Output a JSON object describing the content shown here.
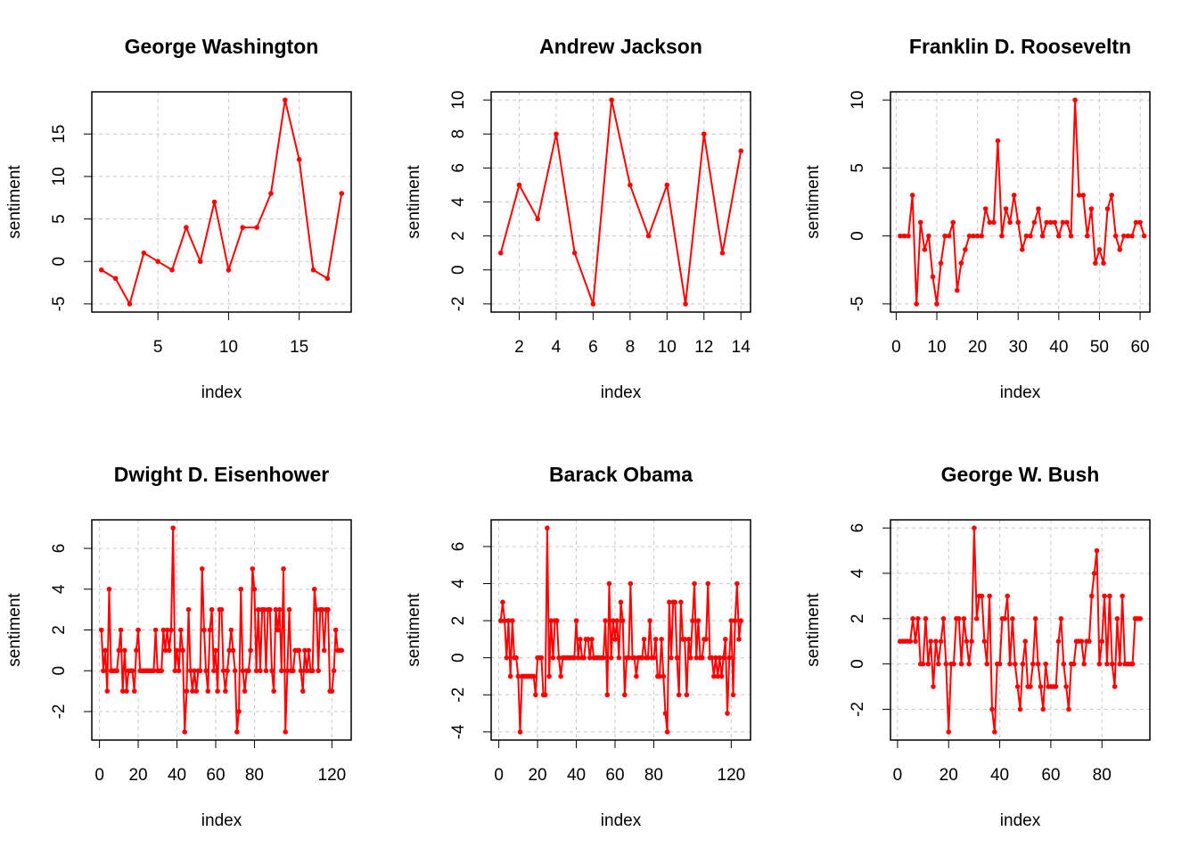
{
  "chart_data": [
    {
      "type": "line",
      "title": "George Washington",
      "xlabel": "index",
      "ylabel": "sentiment",
      "color": "#ff0000",
      "grid": true,
      "x": [
        1,
        2,
        3,
        4,
        5,
        6,
        7,
        8,
        9,
        10,
        11,
        12,
        13,
        14,
        15,
        16,
        17,
        18
      ],
      "values": [
        -1,
        -2,
        -5,
        1,
        0,
        -1,
        4,
        0,
        7,
        -1,
        4,
        4,
        8,
        19,
        12,
        -1,
        -2,
        8
      ],
      "xlim": [
        0.32,
        18.68
      ],
      "ylim": [
        -5.96,
        19.96
      ],
      "xticks": [
        5,
        10,
        15
      ],
      "yticks": [
        -5,
        0,
        5,
        10,
        15
      ]
    },
    {
      "type": "line",
      "title": "Andrew Jackson",
      "xlabel": "index",
      "ylabel": "sentiment",
      "color": "#ff0000",
      "grid": true,
      "x": [
        1,
        2,
        3,
        4,
        5,
        6,
        7,
        8,
        9,
        10,
        11,
        12,
        13,
        14
      ],
      "values": [
        1,
        5,
        3,
        8,
        1,
        -2,
        10,
        5,
        2,
        5,
        -2,
        8,
        1,
        7
      ],
      "xlim": [
        0.48,
        14.52
      ],
      "ylim": [
        -2.48,
        10.48
      ],
      "xticks": [
        2,
        4,
        6,
        8,
        10,
        12,
        14
      ],
      "yticks": [
        -2,
        0,
        2,
        4,
        6,
        8,
        10
      ]
    },
    {
      "type": "line",
      "title": "Franklin D. Rooseveltn",
      "xlabel": "index",
      "ylabel": "sentiment",
      "color": "#ff0000",
      "grid": true,
      "x": [
        1,
        2,
        3,
        4,
        5,
        6,
        7,
        8,
        9,
        10,
        11,
        12,
        13,
        14,
        15,
        16,
        17,
        18,
        19,
        20,
        21,
        22,
        23,
        24,
        25,
        26,
        27,
        28,
        29,
        30,
        31,
        32,
        33,
        34,
        35,
        36,
        37,
        38,
        39,
        40,
        41,
        42,
        43,
        44,
        45,
        46,
        47,
        48,
        49,
        50,
        51,
        52,
        53,
        54,
        55,
        56,
        57,
        58,
        59,
        60,
        61
      ],
      "values": [
        0,
        0,
        0,
        3,
        -5,
        1,
        -1,
        0,
        -3,
        -5,
        -2,
        0,
        0,
        1,
        -4,
        -2,
        -1,
        0,
        0,
        0,
        0,
        2,
        1,
        1,
        7,
        0,
        2,
        1,
        3,
        1,
        -1,
        0,
        0,
        1,
        2,
        0,
        1,
        1,
        1,
        0,
        1,
        1,
        0,
        10,
        3,
        3,
        0,
        2,
        -2,
        -1,
        -2,
        2,
        3,
        0,
        -1,
        0,
        0,
        0,
        1,
        1,
        0
      ],
      "xlim": [
        -1.4,
        62.4
      ],
      "ylim": [
        -5.6,
        10.6
      ],
      "xticks": [
        0,
        10,
        20,
        30,
        40,
        50,
        60
      ],
      "yticks": [
        -5,
        0,
        5,
        10
      ]
    },
    {
      "type": "line",
      "title": "Dwight D. Eisenhower",
      "xlabel": "index",
      "ylabel": "sentiment",
      "color": "#ff0000",
      "grid": true,
      "x": [
        1,
        2,
        3,
        4,
        5,
        6,
        7,
        8,
        9,
        10,
        11,
        12,
        13,
        14,
        15,
        16,
        17,
        18,
        19,
        20,
        21,
        22,
        23,
        24,
        25,
        26,
        27,
        28,
        29,
        30,
        31,
        32,
        33,
        34,
        35,
        36,
        37,
        38,
        39,
        40,
        41,
        42,
        43,
        44,
        45,
        46,
        47,
        48,
        49,
        50,
        51,
        52,
        53,
        54,
        55,
        56,
        57,
        58,
        59,
        60,
        61,
        62,
        63,
        64,
        65,
        66,
        67,
        68,
        69,
        70,
        71,
        72,
        73,
        74,
        75,
        76,
        77,
        78,
        79,
        80,
        81,
        82,
        83,
        84,
        85,
        86,
        87,
        88,
        89,
        90,
        91,
        92,
        93,
        94,
        95,
        96,
        97,
        98,
        99,
        100,
        101,
        102,
        103,
        104,
        105,
        106,
        107,
        108,
        109,
        110,
        111,
        112,
        113,
        114,
        115,
        116,
        117,
        118,
        119,
        120,
        121,
        122,
        123,
        124,
        125
      ],
      "values": [
        2,
        0,
        1,
        -1,
        4,
        0,
        0,
        0,
        0,
        1,
        2,
        -1,
        1,
        -1,
        0,
        0,
        0,
        -1,
        1,
        2,
        0,
        0,
        0,
        0,
        0,
        0,
        0,
        0,
        2,
        0,
        0,
        0,
        2,
        1,
        2,
        1,
        2,
        7,
        0,
        1,
        0,
        2,
        1,
        -3,
        -1,
        3,
        0,
        -1,
        0,
        -1,
        0,
        0,
        5,
        2,
        0,
        -1,
        2,
        3,
        0,
        1,
        -1,
        3,
        3,
        0,
        -1,
        0,
        1,
        2,
        1,
        0,
        -3,
        -2,
        4,
        0,
        -1,
        0,
        0,
        1,
        5,
        4,
        0,
        3,
        0,
        3,
        3,
        0,
        3,
        3,
        0,
        -1,
        3,
        2,
        3,
        0,
        5,
        -3,
        0,
        3,
        0,
        0,
        1,
        1,
        1,
        0,
        -1,
        1,
        0,
        1,
        0,
        0,
        4,
        3,
        0,
        3,
        3,
        1,
        3,
        3,
        -1,
        -1,
        0,
        2,
        1,
        1,
        1
      ],
      "xlim": [
        -3.96,
        129.96
      ],
      "ylim": [
        -3.4,
        7.4
      ],
      "xticks": [
        0,
        20,
        40,
        60,
        80,
        120
      ],
      "yticks": [
        -2,
        0,
        2,
        4,
        6
      ]
    },
    {
      "type": "line",
      "title": "Barack Obama",
      "xlabel": "index",
      "ylabel": "sentiment",
      "color": "#ff0000",
      "grid": true,
      "x": [
        1,
        2,
        3,
        4,
        5,
        6,
        7,
        8,
        9,
        10,
        11,
        12,
        13,
        14,
        15,
        16,
        17,
        18,
        19,
        20,
        21,
        22,
        23,
        24,
        25,
        26,
        27,
        28,
        29,
        30,
        31,
        32,
        33,
        34,
        35,
        36,
        37,
        38,
        39,
        40,
        41,
        42,
        43,
        44,
        45,
        46,
        47,
        48,
        49,
        50,
        51,
        52,
        53,
        54,
        55,
        56,
        57,
        58,
        59,
        60,
        61,
        62,
        63,
        64,
        65,
        66,
        67,
        68,
        69,
        70,
        71,
        72,
        73,
        74,
        75,
        76,
        77,
        78,
        79,
        80,
        81,
        82,
        83,
        84,
        85,
        86,
        87,
        88,
        89,
        90,
        91,
        92,
        93,
        94,
        95,
        96,
        97,
        98,
        99,
        100,
        101,
        102,
        103,
        104,
        105,
        106,
        107,
        108,
        109,
        110,
        111,
        112,
        113,
        114,
        115,
        116,
        117,
        118,
        119,
        120,
        121,
        122,
        123,
        124,
        125
      ],
      "values": [
        2,
        3,
        2,
        0,
        2,
        -1,
        2,
        0,
        0,
        -1,
        -4,
        -1,
        -1,
        -1,
        -1,
        -1,
        -1,
        -1,
        -2,
        0,
        0,
        0,
        -2,
        -2,
        7,
        -1,
        2,
        0,
        2,
        2,
        0,
        -1,
        0,
        0,
        0,
        0,
        0,
        0,
        0,
        2,
        0,
        1,
        0,
        0,
        1,
        1,
        0,
        1,
        0,
        0,
        0,
        0,
        0,
        0,
        2,
        -2,
        4,
        0,
        2,
        1,
        2,
        0,
        3,
        2,
        -2,
        0,
        0,
        4,
        0,
        0,
        -1,
        0,
        0,
        0,
        1,
        0,
        0,
        2,
        0,
        0,
        1,
        -1,
        -1,
        1,
        -1,
        -3,
        -4,
        3,
        0,
        3,
        3,
        0,
        -2,
        3,
        1,
        1,
        -2,
        1,
        0,
        2,
        4,
        0,
        2,
        0,
        0,
        1,
        1,
        4,
        0,
        0,
        -1,
        0,
        -1,
        0,
        -1,
        0,
        1,
        -3,
        0,
        2,
        -2,
        2,
        4,
        1,
        2
      ],
      "xlim": [
        -3.96,
        129.96
      ],
      "ylim": [
        -4.44,
        7.44
      ],
      "xticks": [
        0,
        20,
        40,
        60,
        80,
        120
      ],
      "yticks": [
        -4,
        -2,
        0,
        2,
        4,
        6
      ]
    },
    {
      "type": "line",
      "title": "George W. Bush",
      "xlabel": "index",
      "ylabel": "sentiment",
      "color": "#ff0000",
      "grid": true,
      "x": [
        1,
        2,
        3,
        4,
        5,
        6,
        7,
        8,
        9,
        10,
        11,
        12,
        13,
        14,
        15,
        16,
        17,
        18,
        19,
        20,
        21,
        22,
        23,
        24,
        25,
        26,
        27,
        28,
        29,
        30,
        31,
        32,
        33,
        34,
        35,
        36,
        37,
        38,
        39,
        40,
        41,
        42,
        43,
        44,
        45,
        46,
        47,
        48,
        49,
        50,
        51,
        52,
        53,
        54,
        55,
        56,
        57,
        58,
        59,
        60,
        61,
        62,
        63,
        64,
        65,
        66,
        67,
        68,
        69,
        70,
        71,
        72,
        73,
        74,
        75,
        76,
        77,
        78,
        79,
        80,
        81,
        82,
        83,
        84,
        85,
        86,
        87,
        88,
        89,
        90,
        91,
        92,
        93,
        94,
        95
      ],
      "values": [
        1,
        1,
        1,
        1,
        1,
        2,
        1,
        2,
        0,
        0,
        2,
        0,
        1,
        -1,
        1,
        0,
        1,
        2,
        0,
        -3,
        0,
        0,
        2,
        2,
        0,
        2,
        1,
        0,
        1,
        6,
        2,
        3,
        3,
        1,
        0,
        3,
        -2,
        -3,
        0,
        0,
        2,
        2,
        3,
        0,
        2,
        0,
        -1,
        -2,
        0,
        1,
        -1,
        -1,
        0,
        2,
        0,
        -1,
        -2,
        0,
        -1,
        -1,
        -1,
        -1,
        1,
        2,
        0,
        -1,
        -2,
        0,
        0,
        1,
        1,
        1,
        0,
        1,
        1,
        3,
        4,
        5,
        0,
        1,
        3,
        0,
        3,
        0,
        -1,
        2,
        0,
        3,
        0,
        0,
        0,
        0,
        2,
        2,
        2
      ],
      "xlim": [
        -2.76,
        98.76
      ],
      "ylim": [
        -3.36,
        6.36
      ],
      "xticks": [
        0,
        20,
        40,
        60,
        80
      ],
      "yticks": [
        -2,
        0,
        2,
        4,
        6
      ]
    }
  ]
}
